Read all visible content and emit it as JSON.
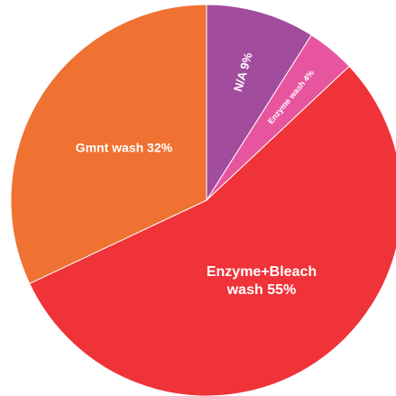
{
  "chart_data": {
    "type": "pie",
    "categories": [
      "N/A",
      "Enzyme wash",
      "Enzyme+Bleach wash",
      "Gmnt wash"
    ],
    "values": [
      9,
      4,
      55,
      32
    ],
    "value_labels": [
      "9%",
      "4%",
      "55%",
      "32%"
    ],
    "colors": [
      "#a24c9e",
      "#e8559f",
      "#ef3338",
      "#f07232"
    ]
  }
}
